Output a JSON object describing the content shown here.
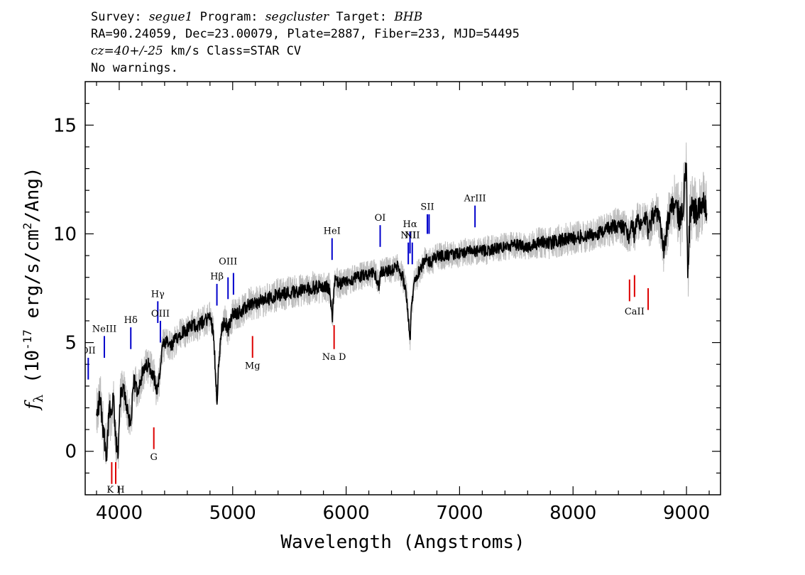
{
  "header": {
    "line1": {
      "survey_label": "Survey:",
      "survey": "segue1",
      "program_label": "Program:",
      "program": "segcluster",
      "target_label": "Target:",
      "target": "BHB"
    },
    "line2": "RA=90.24059, Dec=23.00079, Plate=2887, Fiber=233, MJD=54495",
    "line3": {
      "cz": "cz=40+/-25",
      "rest": " km/s Class=STAR CV"
    },
    "line4": "No warnings."
  },
  "chart_data": {
    "type": "line",
    "xlabel": "Wavelength (Angstroms)",
    "ylabel": "f_λ (10^-17 erg/s/cm^2/Ang)",
    "xlim": [
      3700,
      9300
    ],
    "ylim": [
      -2,
      17
    ],
    "xticks": [
      4000,
      5000,
      6000,
      7000,
      8000,
      9000
    ],
    "yticks": [
      0,
      5,
      10,
      15
    ],
    "grid": false,
    "series": [
      {
        "role": "flux",
        "color": "#000000",
        "x": [
          3800,
          3830,
          3860,
          3890,
          3910,
          3930,
          3950,
          3970,
          3990,
          4010,
          4040,
          4070,
          4100,
          4130,
          4160,
          4200,
          4250,
          4300,
          4330,
          4350,
          4380,
          4420,
          4460,
          4500,
          4550,
          4600,
          4650,
          4700,
          4750,
          4800,
          4830,
          4850,
          4862,
          4875,
          4900,
          4930,
          4960,
          5000,
          5050,
          5100,
          5150,
          5200,
          5300,
          5400,
          5500,
          5600,
          5700,
          5800,
          5850,
          5880,
          5890,
          5900,
          5950,
          6000,
          6050,
          6100,
          6150,
          6200,
          6250,
          6290,
          6300,
          6320,
          6400,
          6450,
          6500,
          6530,
          6550,
          6563,
          6575,
          6600,
          6650,
          6700,
          6750,
          6800,
          6900,
          7000,
          7100,
          7200,
          7300,
          7400,
          7500,
          7600,
          7700,
          7800,
          7900,
          8000,
          8100,
          8200,
          8300,
          8400,
          8450,
          8498,
          8520,
          8542,
          8560,
          8600,
          8650,
          8662,
          8700,
          8750,
          8800,
          8850,
          8900,
          8950,
          8980,
          9000,
          9010,
          9030,
          9050,
          9100,
          9150,
          9180
        ],
        "y": [
          1.5,
          2.5,
          1.0,
          -0.2,
          2.0,
          1.5,
          2.5,
          0.3,
          0.0,
          2.5,
          2.8,
          2.0,
          1.2,
          3.2,
          2.8,
          3.5,
          4.0,
          3.6,
          2.8,
          3.2,
          4.8,
          5.0,
          4.8,
          5.2,
          5.5,
          5.6,
          5.8,
          5.8,
          6.0,
          6.2,
          5.5,
          3.5,
          2.3,
          3.8,
          5.5,
          6.0,
          5.6,
          6.3,
          6.4,
          6.5,
          6.8,
          6.8,
          7.0,
          7.2,
          7.3,
          7.4,
          7.5,
          7.6,
          7.5,
          6.2,
          7.3,
          7.8,
          7.7,
          7.8,
          7.9,
          8.0,
          8.1,
          8.1,
          8.2,
          7.6,
          8.2,
          8.3,
          8.3,
          8.5,
          8.0,
          7.3,
          6.0,
          5.0,
          6.5,
          7.8,
          8.4,
          8.8,
          8.7,
          9.0,
          9.0,
          9.1,
          9.2,
          9.2,
          9.3,
          9.4,
          9.5,
          9.4,
          9.6,
          9.6,
          9.7,
          9.8,
          9.9,
          10.0,
          10.2,
          10.4,
          10.3,
          9.8,
          10.5,
          9.9,
          10.6,
          10.5,
          10.7,
          10.0,
          10.8,
          11.0,
          9.2,
          11.0,
          11.5,
          10.5,
          12.0,
          13.0,
          8.0,
          10.8,
          11.2,
          11.0,
          11.5,
          11.0
        ]
      },
      {
        "role": "noise",
        "color": "#bdbdbd",
        "x": [
          3800,
          3850,
          3900,
          3950,
          4000,
          4100,
          4200,
          4300,
          4400,
          4600,
          4800,
          5000,
          5200,
          5400,
          5600,
          5800,
          6000,
          6200,
          6400,
          6600,
          6800,
          7000,
          7200,
          7400,
          7600,
          7800,
          8000,
          8200,
          8400,
          8600,
          8800,
          8900,
          8950,
          9000,
          9050,
          9100,
          9180
        ],
        "y": [
          1.2,
          1.2,
          1.1,
          1.1,
          1.0,
          0.9,
          0.8,
          0.8,
          0.7,
          0.7,
          0.7,
          0.7,
          0.7,
          0.7,
          0.7,
          0.7,
          0.6,
          0.6,
          0.6,
          0.6,
          0.6,
          0.6,
          0.6,
          0.6,
          0.6,
          0.7,
          0.7,
          0.7,
          0.8,
          0.8,
          1.0,
          1.2,
          1.5,
          1.6,
          1.5,
          1.3,
          1.2
        ]
      }
    ],
    "emission_lines": [
      {
        "label": "OII",
        "x": 3727,
        "y0": 3.3,
        "y1": 4.3,
        "label_y": 4.5
      },
      {
        "label": "NeIII",
        "x": 3869,
        "y0": 4.3,
        "y1": 5.3,
        "label_y": 5.5
      },
      {
        "label": "Hδ",
        "x": 4102,
        "y0": 4.7,
        "y1": 5.7,
        "label_y": 5.9
      },
      {
        "label": "Hγ",
        "x": 4340,
        "y0": 5.9,
        "y1": 6.9,
        "label_y": 7.1
      },
      {
        "label": "OIII",
        "x": 4363,
        "y0": 5.0,
        "y1": 6.0,
        "label_y": 6.2
      },
      {
        "label": "Hβ",
        "x": 4861,
        "y0": 6.7,
        "y1": 7.7,
        "label_y": 7.9
      },
      {
        "label": "OIII",
        "x": 4959,
        "y0": 7.0,
        "y1": 8.0,
        "label_y": 8.6
      },
      {
        "label": "",
        "x": 5007,
        "y0": 7.2,
        "y1": 8.2,
        "label_y": 0
      },
      {
        "label": "HeI",
        "x": 5876,
        "y0": 8.8,
        "y1": 9.8,
        "label_y": 10.0
      },
      {
        "label": "OI",
        "x": 6300,
        "y0": 9.4,
        "y1": 10.4,
        "label_y": 10.6
      },
      {
        "label": "NII",
        "x": 6548,
        "y0": 8.6,
        "y1": 9.6,
        "label_y": 9.8
      },
      {
        "label": "Hα",
        "x": 6563,
        "y0": 9.1,
        "y1": 10.1,
        "label_y": 10.3
      },
      {
        "label": "NII",
        "x": 6583,
        "y0": 8.6,
        "y1": 9.6,
        "label_y": 9.8
      },
      {
        "label": "SII",
        "x": 6716,
        "y0": 10.0,
        "y1": 10.9,
        "label_y": 11.1
      },
      {
        "label": "",
        "x": 6731,
        "y0": 10.0,
        "y1": 10.9,
        "label_y": 0
      },
      {
        "label": "ArIII",
        "x": 7136,
        "y0": 10.3,
        "y1": 11.3,
        "label_y": 11.5
      }
    ],
    "absorption_lines": [
      {
        "label": "",
        "x": 3934,
        "y0": -1.5,
        "y1": -0.5,
        "label_y": 0
      },
      {
        "label": "K H",
        "x": 3969,
        "y0": -1.5,
        "y1": -0.5,
        "label_y": -1.9
      },
      {
        "label": "G",
        "x": 4305,
        "y0": 0.1,
        "y1": 1.1,
        "label_y": -0.4
      },
      {
        "label": "Mg",
        "x": 5175,
        "y0": 4.3,
        "y1": 5.3,
        "label_y": 3.8
      },
      {
        "label": "Na D",
        "x": 5894,
        "y0": 4.7,
        "y1": 5.8,
        "label_y": 4.2
      },
      {
        "label": "",
        "x": 8498,
        "y0": 6.9,
        "y1": 7.9,
        "label_y": 0
      },
      {
        "label": "CaII",
        "x": 8542,
        "y0": 7.1,
        "y1": 8.1,
        "label_y": 6.3
      },
      {
        "label": "",
        "x": 8662,
        "y0": 6.5,
        "y1": 7.5,
        "label_y": 0
      }
    ],
    "emission_color": "#0000cc",
    "absorption_color": "#dd0000"
  }
}
